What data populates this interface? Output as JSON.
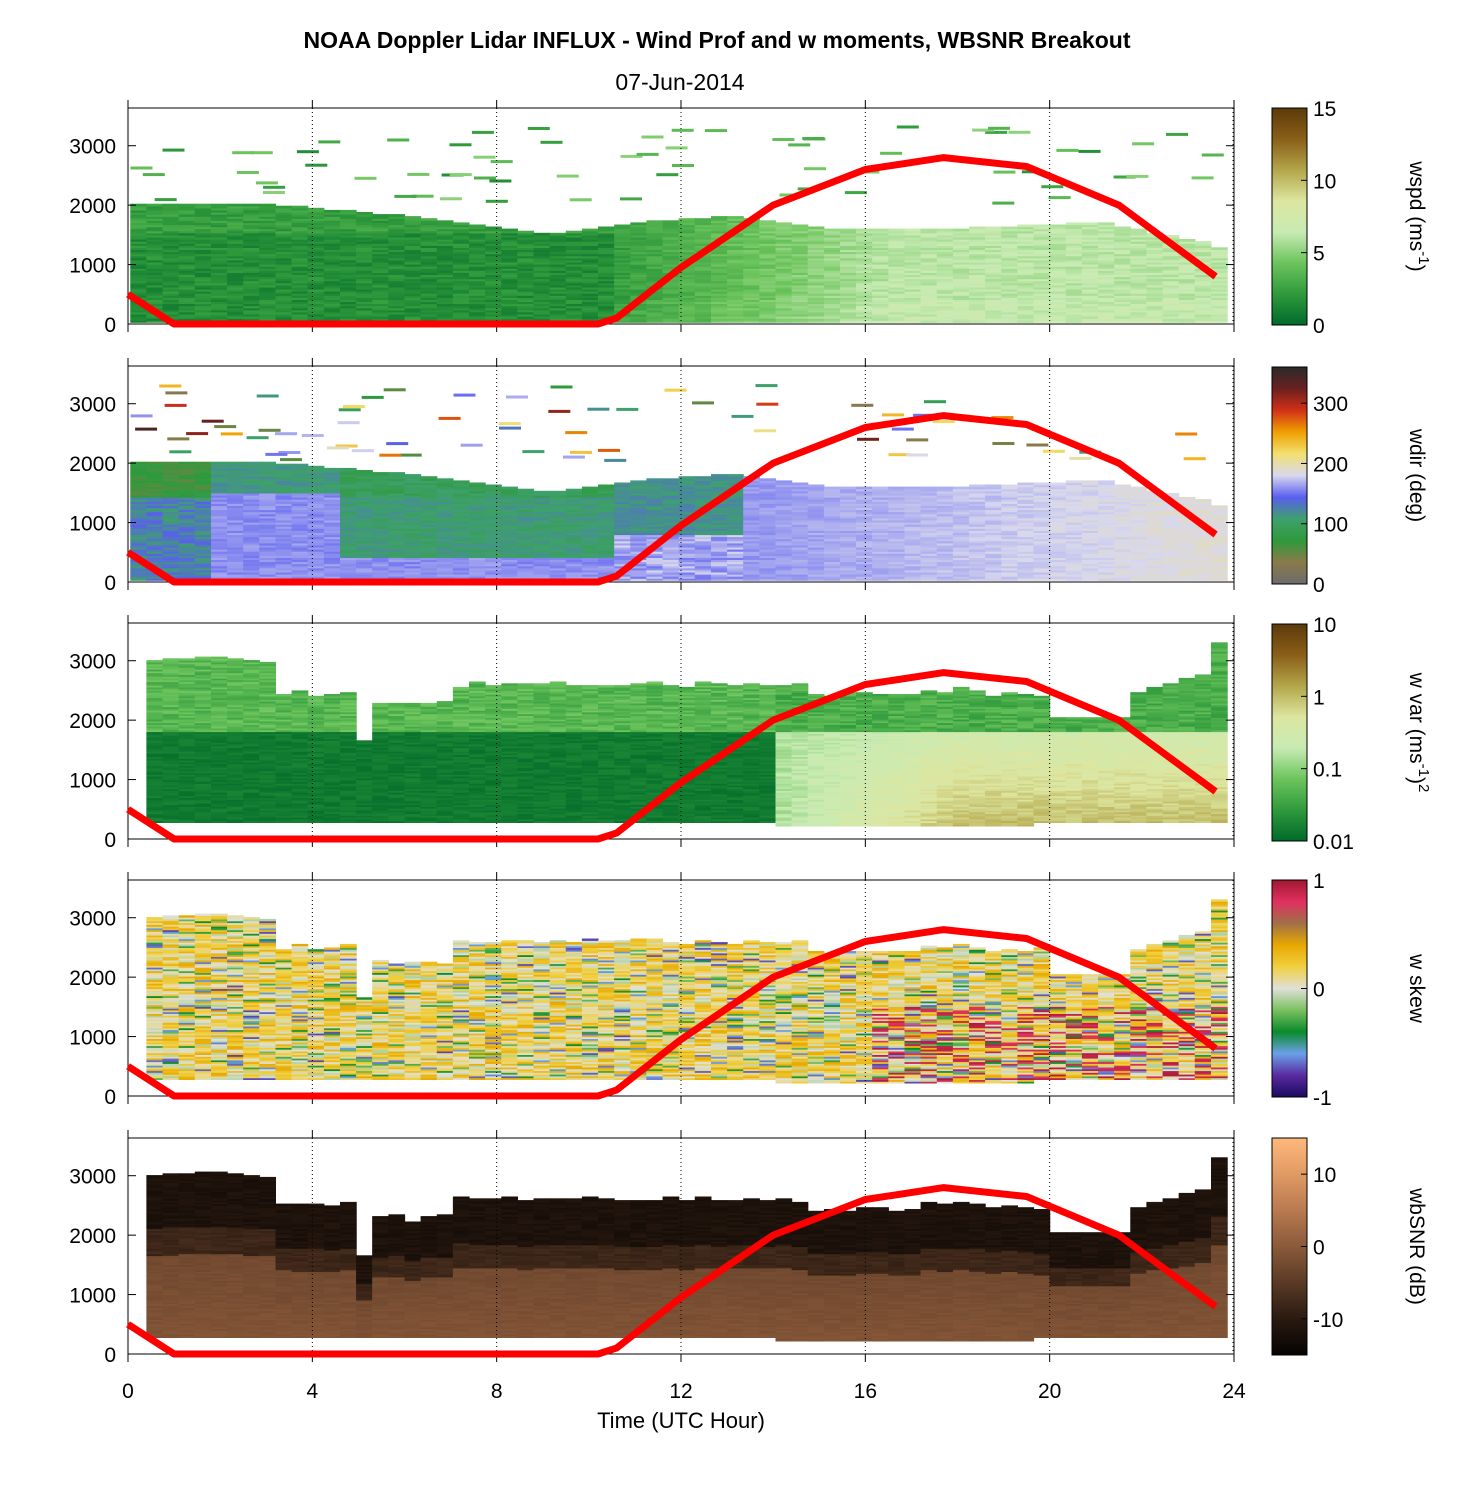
{
  "figure": {
    "title": "NOAA Doppler Lidar INFLUX - Wind Prof and w moments, WBSNR Breakout",
    "subtitle": "07-Jun-2014",
    "xlabel": "Time (UTC Hour)",
    "x_ticks": [
      "0",
      "4",
      "8",
      "12",
      "16",
      "20",
      "24"
    ],
    "y_ticks": [
      "0",
      "1000",
      "2000",
      "3000"
    ]
  },
  "chart_data": [
    {
      "type": "heatmap",
      "variable": "wspd",
      "colorbar_label": "wspd (ms-1)",
      "colorbar_label_text": "wspd (ms",
      "colorbar_label_sup": "-1",
      "colorbar_label_end": ")",
      "colorbar_ticks": [
        "0",
        "5",
        "10",
        "15"
      ],
      "clim": [
        0,
        15
      ],
      "colormap": [
        "#006a2a",
        "#2f9a3c",
        "#6cc45c",
        "#c8ebb4",
        "#dde6a0",
        "#b3a64a",
        "#8a5e18",
        "#5b3a0a"
      ],
      "xlim": [
        0,
        24
      ],
      "ylim": [
        0,
        3500
      ],
      "top_height_profile": [
        {
          "x": 0,
          "y": 2000
        },
        {
          "x": 3,
          "y": 2000
        },
        {
          "x": 6,
          "y": 1800
        },
        {
          "x": 8,
          "y": 1600
        },
        {
          "x": 9,
          "y": 1500
        },
        {
          "x": 11,
          "y": 1700
        },
        {
          "x": 13,
          "y": 1800
        },
        {
          "x": 15,
          "y": 1600
        },
        {
          "x": 18,
          "y": 1600
        },
        {
          "x": 21,
          "y": 1700
        },
        {
          "x": 23,
          "y": 1400
        },
        {
          "x": 23.6,
          "y": 1250
        }
      ],
      "sun_elevation_curve": "red"
    },
    {
      "type": "heatmap",
      "variable": "wdir",
      "colorbar_label": "wdir (deg)",
      "colorbar_ticks": [
        "0",
        "100",
        "200",
        "300"
      ],
      "clim": [
        0,
        360
      ],
      "colormap": [
        "#6b6b6b",
        "#8a7a4a",
        "#2e9a3a",
        "#3fa06e",
        "#5a5ef0",
        "#d8d8ee",
        "#f2e070",
        "#f0a000",
        "#d23018",
        "#6a2020",
        "#2a2a2a"
      ],
      "xlim": [
        0,
        24
      ],
      "ylim": [
        0,
        3500
      ]
    },
    {
      "type": "heatmap",
      "variable": "w var",
      "colorbar_label": "w var (ms-1)2",
      "colorbar_label_text": "w var (ms",
      "colorbar_label_sup": "-1",
      "colorbar_label_end": ")",
      "colorbar_label_sup2": "2",
      "colorbar_ticks": [
        "0.01",
        "0.1",
        "1",
        "10"
      ],
      "clim": [
        0.01,
        10
      ],
      "colorbar_scale": "log",
      "colormap": [
        "#006a2a",
        "#2f9a3c",
        "#6cc45c",
        "#c8ebb4",
        "#dde6a0",
        "#b3a64a",
        "#8a5e18",
        "#5b3a0a"
      ],
      "xlim": [
        0,
        24
      ],
      "ylim": [
        0,
        3500
      ]
    },
    {
      "type": "heatmap",
      "variable": "w skew",
      "colorbar_label": "w skew",
      "colorbar_ticks": [
        "-1",
        "0",
        "1"
      ],
      "clim": [
        -1,
        1
      ],
      "colormap": [
        "#1a0a60",
        "#5a2aa0",
        "#6aa0e8",
        "#0a8a2a",
        "#7ac060",
        "#e0e0d8",
        "#f0d040",
        "#e8a800",
        "#a07048",
        "#e03060",
        "#a01830"
      ],
      "xlim": [
        0,
        24
      ],
      "ylim": [
        0,
        3500
      ]
    },
    {
      "type": "heatmap",
      "variable": "wbSNR",
      "colorbar_label": "wbSNR (dB)",
      "colorbar_ticks": [
        "-10",
        "0",
        "10"
      ],
      "clim": [
        -15,
        15
      ],
      "colormap": [
        "#050302",
        "#2a1a10",
        "#5a3a26",
        "#8a5a3a",
        "#b87a50",
        "#e09a64",
        "#ffb87c"
      ],
      "xlim": [
        0,
        24
      ],
      "ylim": [
        0,
        3500
      ]
    }
  ],
  "sun_curve": {
    "color": "#ff0000",
    "points": [
      {
        "x": 0,
        "y": 500
      },
      {
        "x": 1,
        "y": 0
      },
      {
        "x": 10.2,
        "y": 0
      },
      {
        "x": 10.6,
        "y": 100
      },
      {
        "x": 12,
        "y": 950
      },
      {
        "x": 14,
        "y": 2000
      },
      {
        "x": 16,
        "y": 2600
      },
      {
        "x": 17.7,
        "y": 2800
      },
      {
        "x": 19.5,
        "y": 2650
      },
      {
        "x": 21.5,
        "y": 2000
      },
      {
        "x": 23.6,
        "y": 800
      }
    ]
  }
}
